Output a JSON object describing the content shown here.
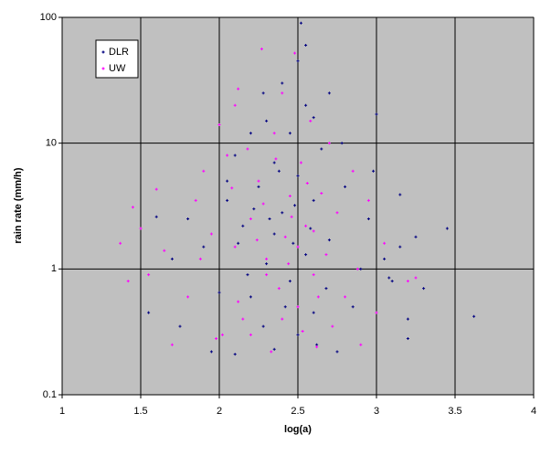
{
  "chart_data": {
    "type": "scatter",
    "x_label": "log(a)",
    "y_label": "rain rate (mm/h)",
    "xlim": [
      1,
      4
    ],
    "xticks": [
      1,
      1.5,
      2,
      2.5,
      3,
      3.5,
      4
    ],
    "ylim": [
      0.1,
      100
    ],
    "yticks": [
      0.1,
      1,
      10,
      100
    ],
    "y_log": true,
    "grid": true,
    "legend": "upper-left",
    "series": [
      {
        "name": "DLR",
        "color": "#000080",
        "x": [
          2.1,
          2.35,
          2.5,
          2.6,
          2.2,
          2.45,
          2.3,
          2.55,
          2.7,
          2.15,
          2.4,
          2.6,
          2.25,
          2.5,
          2.35,
          2.65,
          2.45,
          2.3,
          2.55,
          2.7,
          2.4,
          2.5,
          2.52,
          2.55,
          2.0,
          1.9,
          1.8,
          1.7,
          1.6,
          1.55,
          1.75,
          1.95,
          2.05,
          2.1,
          2.2,
          2.28,
          2.75,
          2.85,
          2.9,
          2.95,
          3.0,
          2.98,
          3.05,
          3.1,
          3.15,
          3.2,
          3.25,
          3.3,
          3.45,
          3.62,
          3.15,
          3.2,
          3.08,
          2.8,
          2.78,
          2.6,
          2.35,
          2.42,
          2.28,
          2.62,
          2.12,
          2.18,
          2.48,
          2.38,
          2.58,
          2.68,
          2.05,
          2.32,
          2.47,
          2.22
        ],
        "values": [
          0.21,
          0.23,
          0.3,
          0.45,
          0.6,
          0.8,
          1.1,
          1.3,
          1.7,
          2.2,
          2.8,
          3.5,
          4.5,
          5.5,
          7,
          9,
          12,
          15,
          20,
          25,
          30,
          45,
          90,
          60,
          0.65,
          1.5,
          2.5,
          1.2,
          2.6,
          0.45,
          0.35,
          0.22,
          3.5,
          8,
          12,
          25,
          0.22,
          0.5,
          1.0,
          2.5,
          17,
          6,
          1.2,
          0.8,
          1.5,
          0.4,
          1.8,
          0.7,
          2.1,
          0.42,
          3.9,
          0.28,
          0.85,
          4.5,
          10,
          16,
          1.9,
          0.5,
          0.35,
          0.25,
          1.6,
          0.9,
          3.2,
          6,
          2.1,
          0.7,
          5,
          2.5,
          1.6,
          3.0
        ]
      },
      {
        "name": "UW",
        "color": "#ff00ff",
        "x": [
          1.37,
          1.42,
          1.45,
          1.5,
          1.55,
          1.6,
          1.65,
          1.7,
          1.8,
          1.85,
          1.9,
          1.95,
          2.0,
          2.02,
          2.05,
          2.1,
          2.15,
          2.2,
          2.25,
          2.3,
          2.35,
          2.38,
          2.4,
          2.42,
          2.45,
          2.48,
          2.5,
          2.52,
          2.55,
          2.58,
          2.6,
          2.62,
          2.65,
          2.68,
          2.7,
          2.72,
          2.75,
          2.8,
          2.85,
          2.88,
          2.9,
          2.95,
          3.0,
          3.05,
          3.2,
          3.25,
          2.1,
          2.2,
          2.28,
          2.33,
          2.36,
          2.44,
          2.53,
          2.56,
          2.6,
          2.18,
          2.08,
          2.12,
          2.24,
          2.3,
          2.4,
          2.46,
          2.5,
          2.63,
          2.12,
          1.98,
          1.88,
          2.27
        ],
        "values": [
          1.6,
          0.8,
          3.1,
          2.1,
          0.9,
          4.3,
          1.4,
          0.25,
          0.6,
          3.5,
          6,
          1.9,
          14,
          0.3,
          8,
          20,
          0.4,
          2.5,
          5,
          1.2,
          12,
          0.7,
          25,
          1.8,
          3.8,
          52,
          0.5,
          7,
          2.2,
          15,
          0.9,
          0.24,
          4,
          1.3,
          10,
          0.35,
          2.8,
          0.6,
          6,
          1.0,
          0.25,
          3.5,
          0.45,
          1.6,
          0.8,
          0.85,
          1.5,
          0.3,
          3.3,
          0.22,
          7.5,
          1.1,
          0.32,
          4.8,
          2.0,
          9,
          4.4,
          0.55,
          1.7,
          0.9,
          0.4,
          2.6,
          1.5,
          0.6,
          27,
          0.28,
          1.2,
          56
        ]
      }
    ]
  }
}
